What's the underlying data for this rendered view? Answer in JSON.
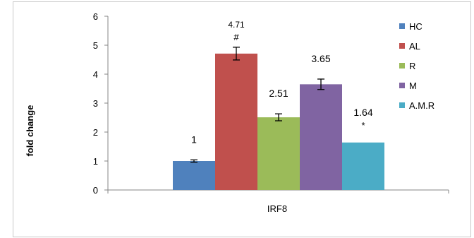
{
  "chart_data": {
    "type": "bar",
    "title": "",
    "xlabel": "IRF8",
    "ylabel": "fold change",
    "ylim": [
      0,
      6
    ],
    "yticks": [
      0,
      1,
      2,
      3,
      4,
      5,
      6
    ],
    "grid": false,
    "legend_position": "right",
    "categories": [
      "IRF8"
    ],
    "series": [
      {
        "name": "HC",
        "values": [
          1
        ],
        "error": 0.04,
        "label": "1",
        "marker": "",
        "color": "#4f81bd"
      },
      {
        "name": "AL",
        "values": [
          4.71
        ],
        "error": 0.22,
        "label": "4.71",
        "marker": "#",
        "color": "#c0504d"
      },
      {
        "name": "R",
        "values": [
          2.51
        ],
        "error": 0.12,
        "label": "2.51",
        "marker": "",
        "color": "#9bbb59"
      },
      {
        "name": "M",
        "values": [
          3.65
        ],
        "error": 0.18,
        "label": "3.65",
        "marker": "",
        "color": "#8064a2"
      },
      {
        "name": "A.M.R",
        "values": [
          1.64
        ],
        "error": 0,
        "label": "1.64",
        "marker": "*",
        "color": "#4bacc6"
      }
    ]
  }
}
